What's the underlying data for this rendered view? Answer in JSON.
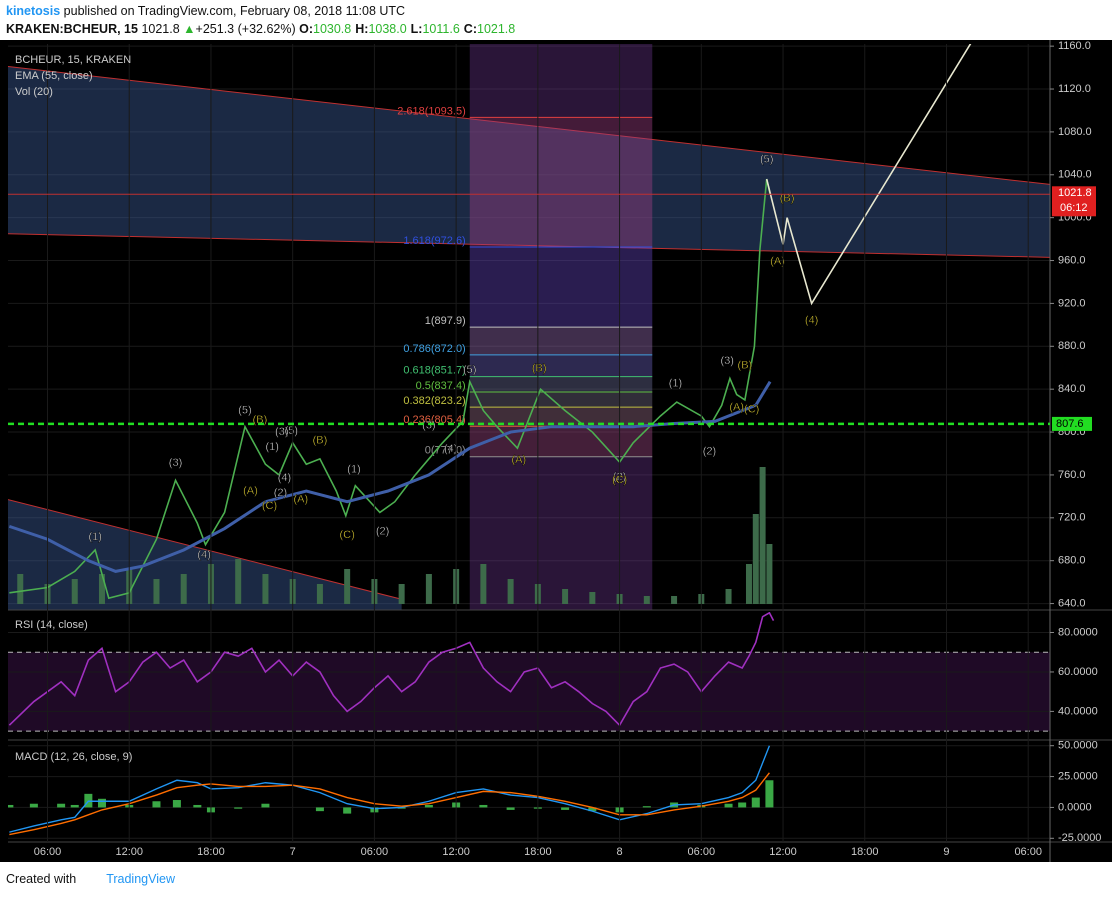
{
  "header": {
    "author": "kinetosis",
    "published": "published on TradingView.com, February 08, 2018 11:08 UTC"
  },
  "quote": {
    "symbol": "KRAKEN:BCHEUR, 15",
    "last": "1021.8",
    "arrow": "▲",
    "change": "+251.3 (+32.62%)",
    "fields": [
      {
        "label": "O:",
        "value": "1030.8"
      },
      {
        "label": "H:",
        "value": "1038.0"
      },
      {
        "label": "L:",
        "value": "1011.6"
      },
      {
        "label": "C:",
        "value": "1021.8"
      }
    ]
  },
  "chart_data": {
    "type": "line",
    "pane_labels": [
      "BCHEUR, 15, KRAKEN",
      "EMA (55, close)",
      "Vol (20)"
    ],
    "xlim": [
      3.1,
      79.6
    ],
    "xticks": [
      {
        "value": 6,
        "label": "06:00"
      },
      {
        "value": 12,
        "label": "12:00"
      },
      {
        "value": 18,
        "label": "18:00"
      },
      {
        "value": 24,
        "label": "7"
      },
      {
        "value": 30,
        "label": "06:00"
      },
      {
        "value": 36,
        "label": "12:00"
      },
      {
        "value": 42,
        "label": "18:00"
      },
      {
        "value": 48,
        "label": "8"
      },
      {
        "value": 54,
        "label": "06:00"
      },
      {
        "value": 60,
        "label": "12:00"
      },
      {
        "value": 66,
        "label": "18:00"
      },
      {
        "value": 72,
        "label": "9"
      },
      {
        "value": 78,
        "label": "06:00"
      }
    ],
    "ylim": [
      634,
      1162
    ],
    "yticks": [
      {
        "value": 640,
        "label": "640.0"
      },
      {
        "value": 680,
        "label": "680.0"
      },
      {
        "value": 720,
        "label": "720.0"
      },
      {
        "value": 760,
        "label": "760.0"
      },
      {
        "value": 800,
        "label": "800.0"
      },
      {
        "value": 840,
        "label": "840.0"
      },
      {
        "value": 880,
        "label": "880.0"
      },
      {
        "value": 920,
        "label": "920.0"
      },
      {
        "value": 960,
        "label": "960.0"
      },
      {
        "value": 1000,
        "label": "1000.0"
      },
      {
        "value": 1040,
        "label": "1040.0"
      },
      {
        "value": 1080,
        "label": "1080.0"
      },
      {
        "value": 1120,
        "label": "1120.0"
      },
      {
        "value": 1160,
        "label": "1160.0"
      }
    ],
    "series": [
      {
        "name": "BCHEUR",
        "color": "#4caf50",
        "x": [
          3.2,
          6,
          8,
          9.5,
          10.5,
          12,
          14,
          15.4,
          17,
          17.6,
          19,
          20.5,
          22,
          23,
          24,
          25,
          26,
          27.2,
          27.9,
          28.6,
          30.4,
          31.5,
          33,
          35,
          36.5,
          37,
          38,
          39,
          40.5,
          42.2,
          44,
          46,
          48,
          49,
          51,
          52.2,
          54,
          54.6,
          55.5,
          56.1,
          56.6,
          57.2,
          57.9,
          58.3,
          58.8,
          59.05
        ],
        "values": [
          650,
          655,
          670,
          690,
          645,
          650,
          700,
          755,
          715,
          695,
          725,
          805,
          770,
          760,
          790,
          770,
          775,
          745,
          722,
          750,
          725,
          735,
          760,
          790,
          810,
          847,
          820,
          805,
          785,
          840,
          820,
          800,
          772,
          790,
          815,
          828,
          815,
          805,
          825,
          850,
          835,
          830,
          880,
          970,
          1036,
          1021.8
        ]
      },
      {
        "name": "EMA (55, close)",
        "color": "#3f5fa8",
        "x": [
          3.2,
          6,
          9,
          11,
          13,
          16,
          19,
          22,
          25,
          28,
          31,
          34,
          37,
          40,
          43,
          46,
          49,
          52,
          55,
          58,
          59.05
        ],
        "values": [
          712,
          700,
          680,
          670,
          675,
          690,
          710,
          735,
          745,
          735,
          745,
          760,
          785,
          800,
          805,
          805,
          805,
          808,
          810,
          825,
          847
        ]
      },
      {
        "name": "projection",
        "color": "#e8e8d0",
        "x": [
          58.8,
          60.0,
          60.3,
          62.1,
          73.9
        ],
        "values": [
          1036,
          975,
          1000,
          920,
          1165
        ]
      }
    ],
    "volume": {
      "color": "#3d6b4a",
      "x": [
        4,
        6,
        8,
        10,
        12,
        14,
        16,
        18,
        20,
        22,
        24,
        26,
        28,
        30,
        32,
        34,
        36,
        38,
        40,
        42,
        44,
        46,
        48,
        50,
        52,
        54,
        56,
        57.5,
        58,
        58.5,
        59
      ],
      "values": [
        30,
        20,
        25,
        30,
        35,
        25,
        30,
        40,
        45,
        30,
        25,
        20,
        35,
        25,
        20,
        30,
        35,
        40,
        25,
        20,
        15,
        12,
        10,
        8,
        8,
        10,
        15,
        40,
        90,
        137,
        60
      ]
    },
    "channels": [
      {
        "color": "#c03030",
        "upper": [
          3.1,
          1141,
          79.6,
          1031
        ],
        "lower": [
          3.1,
          985,
          79.6,
          963
        ]
      },
      {
        "color": "#c03030",
        "upper": [
          3.1,
          737,
          32,
          644
        ],
        "lower": [
          3.1,
          634,
          32,
          634
        ]
      }
    ],
    "fib": {
      "t0": 37,
      "t1": 50.4,
      "levels": [
        {
          "label": "2.618(1093.5)",
          "price": 1093.5,
          "color": "#e04040"
        },
        {
          "label": "1.618(972.6)",
          "price": 972.6,
          "color": "#3050e0"
        },
        {
          "label": "1(897.9)",
          "price": 897.9,
          "color": "#c0c0c0"
        },
        {
          "label": "0.786(872.0)",
          "price": 872.0,
          "color": "#40a0e0"
        },
        {
          "label": "0.618(851.7)",
          "price": 851.7,
          "color": "#40c070"
        },
        {
          "label": "0.5(837.4)",
          "price": 837.4,
          "color": "#60c040"
        },
        {
          "label": "0.382(823.2)",
          "price": 823.2,
          "color": "#c0c040"
        },
        {
          "label": "0.236(805.4)",
          "price": 805.4,
          "color": "#e06040"
        },
        {
          "label": "0(777.0)",
          "price": 777.0,
          "color": "#909090"
        }
      ]
    },
    "hline": {
      "price": 807.6,
      "color": "#22dd22"
    },
    "last_badge": {
      "price": 1021.8,
      "countdown": "06:12"
    },
    "annotations": [
      {
        "text": "(1)",
        "t": 9.5,
        "price": 702,
        "color": "#ffffff"
      },
      {
        "text": "(3)",
        "t": 15.4,
        "price": 771,
        "color": "#ffffff"
      },
      {
        "text": "(4)",
        "t": 17.5,
        "price": 685,
        "color": "#ffffff"
      },
      {
        "text": "(5)",
        "t": 20.5,
        "price": 820,
        "color": "#ffffff"
      },
      {
        "text": "(B)",
        "t": 21.6,
        "price": 811,
        "color": "#ffeb3b"
      },
      {
        "text": "(A)",
        "t": 20.9,
        "price": 745,
        "color": "#ffeb3b"
      },
      {
        "text": "(C)",
        "t": 22.3,
        "price": 731,
        "color": "#ffeb3b"
      },
      {
        "text": "(1)",
        "t": 22.5,
        "price": 786,
        "color": "#ffffff"
      },
      {
        "text": "(3)",
        "t": 23.2,
        "price": 800,
        "color": "#ffffff"
      },
      {
        "text": "(5)",
        "t": 23.9,
        "price": 801,
        "color": "#ffffff"
      },
      {
        "text": "(4)",
        "t": 23.4,
        "price": 757,
        "color": "#ffffff"
      },
      {
        "text": "(2)",
        "t": 23.1,
        "price": 743,
        "color": "#ffffff"
      },
      {
        "text": "(B)",
        "t": 26.0,
        "price": 792,
        "color": "#ffeb3b"
      },
      {
        "text": "(A)",
        "t": 24.6,
        "price": 737,
        "color": "#ffeb3b"
      },
      {
        "text": "(1)",
        "t": 28.5,
        "price": 765,
        "color": "#ffffff"
      },
      {
        "text": "(C)",
        "t": 28.0,
        "price": 704,
        "color": "#ffeb3b"
      },
      {
        "text": "(2)",
        "t": 30.6,
        "price": 707,
        "color": "#ffffff"
      },
      {
        "text": "(3)",
        "t": 34.0,
        "price": 806,
        "color": "#ffffff"
      },
      {
        "text": "(4)",
        "t": 35.6,
        "price": 784,
        "color": "#ffffff"
      },
      {
        "text": "(5)",
        "t": 37.0,
        "price": 858,
        "color": "#ffffff"
      },
      {
        "text": "(B)",
        "t": 42.1,
        "price": 859,
        "color": "#ffeb3b"
      },
      {
        "text": "(A)",
        "t": 40.6,
        "price": 774,
        "color": "#ffeb3b"
      },
      {
        "text": "(2)",
        "t": 48.0,
        "price": 758,
        "color": "#ffffff"
      },
      {
        "text": "(C)",
        "t": 48.0,
        "price": 755,
        "color": "#ffeb3b"
      },
      {
        "text": "(1)",
        "t": 52.1,
        "price": 845,
        "color": "#ffffff"
      },
      {
        "text": "(2)",
        "t": 54.6,
        "price": 782,
        "color": "#ffffff"
      },
      {
        "text": "(3)",
        "t": 55.9,
        "price": 866,
        "color": "#ffffff"
      },
      {
        "text": "(B)",
        "t": 57.2,
        "price": 862,
        "color": "#ffeb3b"
      },
      {
        "text": "(A)",
        "t": 56.6,
        "price": 823,
        "color": "#ffeb3b"
      },
      {
        "text": "(C)",
        "t": 57.7,
        "price": 821,
        "color": "#ffeb3b"
      },
      {
        "text": "(5)",
        "t": 58.8,
        "price": 1054,
        "color": "#ffffff"
      },
      {
        "text": "(B)",
        "t": 60.3,
        "price": 1018,
        "color": "#ffeb3b"
      },
      {
        "text": "(A)",
        "t": 59.6,
        "price": 959,
        "color": "#ffeb3b"
      },
      {
        "text": "(4)",
        "t": 62.1,
        "price": 904,
        "color": "#ffeb3b"
      }
    ],
    "rsi": {
      "label": "RSI (14, close)",
      "color": "#a030c0",
      "ylim": [
        25.5,
        90.4
      ],
      "bands": [
        70,
        30
      ],
      "yticks": [
        {
          "value": 40,
          "label": "40.0000"
        },
        {
          "value": 60,
          "label": "60.0000"
        },
        {
          "value": 80,
          "label": "80.0000"
        }
      ],
      "x": [
        3.2,
        5,
        7,
        8,
        9,
        10,
        11,
        12,
        13,
        14,
        15,
        16,
        17,
        18,
        19,
        20,
        21,
        22,
        23,
        24,
        25,
        26,
        27,
        28,
        29,
        30,
        31,
        32,
        33,
        34,
        35,
        36,
        37,
        38,
        39,
        40,
        41,
        42,
        43,
        44,
        45,
        46,
        47,
        48,
        49,
        50,
        51,
        52,
        53,
        54,
        55,
        56,
        57,
        57.5,
        58,
        58.5,
        59,
        59.3
      ],
      "values": [
        33,
        45,
        55,
        48,
        66,
        72,
        50,
        55,
        65,
        70,
        62,
        66,
        55,
        60,
        70,
        68,
        72,
        60,
        66,
        58,
        65,
        60,
        48,
        40,
        45,
        52,
        58,
        50,
        55,
        65,
        70,
        72,
        75,
        62,
        55,
        50,
        60,
        62,
        52,
        55,
        50,
        44,
        40,
        33,
        45,
        50,
        62,
        64,
        60,
        50,
        58,
        65,
        62,
        68,
        75,
        88,
        90,
        86
      ]
    },
    "macd": {
      "label": "MACD (12, 26, close, 9)",
      "ylim": [
        -28,
        53
      ],
      "yticks": [
        {
          "value": -25,
          "label": "-25.0000"
        },
        {
          "value": 0,
          "label": "0.0000"
        },
        {
          "value": 25,
          "label": "25.0000"
        },
        {
          "value": 50,
          "label": "50.0000"
        }
      ],
      "x": [
        3.2,
        5,
        7,
        8,
        9,
        10,
        12,
        14,
        15.5,
        17,
        18,
        20,
        22,
        24,
        26,
        28,
        30,
        32,
        34,
        36,
        38,
        40,
        42,
        44,
        46,
        48,
        50,
        52,
        54,
        56,
        57,
        58,
        59
      ],
      "series": [
        {
          "name": "MACD",
          "color": "#2196f3",
          "values": [
            -20,
            -15,
            -10,
            -8,
            5,
            5,
            5,
            15,
            22,
            20,
            15,
            16,
            20,
            18,
            12,
            3,
            -1,
            0,
            5,
            12,
            15,
            10,
            8,
            3,
            -3,
            -10,
            -5,
            2,
            3,
            8,
            12,
            22,
            50
          ]
        },
        {
          "name": "Signal",
          "color": "#ff6d00",
          "values": [
            -22,
            -18,
            -13,
            -10,
            -6,
            -2,
            3,
            10,
            16,
            18,
            19,
            17,
            17,
            18,
            15,
            8,
            3,
            1,
            3,
            8,
            13,
            12,
            9,
            5,
            0,
            -6,
            -6,
            -2,
            1,
            5,
            8,
            14,
            28
          ]
        },
        {
          "name": "Histogram",
          "color": "#3aa845",
          "values": [
            2,
            3,
            3,
            2,
            11,
            7,
            2,
            5,
            6,
            2,
            -4,
            -1,
            3,
            0,
            -3,
            -5,
            -4,
            -1,
            2,
            4,
            2,
            -2,
            -1,
            -2,
            -3,
            -4,
            1,
            4,
            2,
            3,
            4,
            8,
            22
          ]
        }
      ]
    }
  },
  "footer": {
    "created": "Created with",
    "brand": "TradingView"
  }
}
